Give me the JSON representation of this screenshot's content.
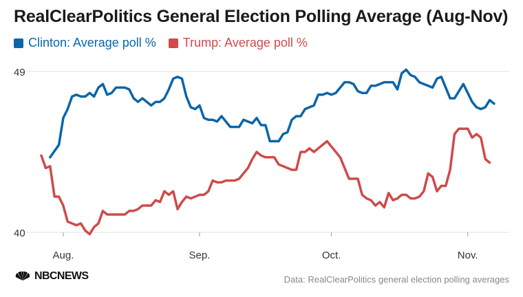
{
  "chart_data": {
    "type": "line",
    "title": "RealClearPolitics General Election Polling Average (Aug-Nov)",
    "xlabel": "",
    "ylabel": "",
    "ylim": [
      40,
      49
    ],
    "xlim": [
      "2016-07-27",
      "2016-11-07"
    ],
    "y_ticks": [
      {
        "value": 40,
        "label": "40"
      },
      {
        "value": 49,
        "label": "49"
      }
    ],
    "x_ticks": [
      {
        "date": "2016-08-01",
        "label": "Aug."
      },
      {
        "date": "2016-09-01",
        "label": "Sep."
      },
      {
        "date": "2016-10-01",
        "label": "Oct."
      },
      {
        "date": "2016-11-01",
        "label": "Nov."
      }
    ],
    "grid": "horizontal",
    "legend_position": "top-left",
    "series": [
      {
        "name": "Clinton: Average poll %",
        "color": "#0b65a8",
        "points": [
          [
            "2016-07-29",
            44.2
          ],
          [
            "2016-07-31",
            44.9
          ],
          [
            "2016-08-01",
            46.4
          ],
          [
            "2016-08-02",
            46.9
          ],
          [
            "2016-08-03",
            47.6
          ],
          [
            "2016-08-04",
            47.7
          ],
          [
            "2016-08-05",
            47.6
          ],
          [
            "2016-08-06",
            47.6
          ],
          [
            "2016-08-07",
            47.8
          ],
          [
            "2016-08-08",
            47.6
          ],
          [
            "2016-08-09",
            48.1
          ],
          [
            "2016-08-10",
            48.3
          ],
          [
            "2016-08-11",
            47.7
          ],
          [
            "2016-08-12",
            47.8
          ],
          [
            "2016-08-13",
            48.1
          ],
          [
            "2016-08-14",
            48.1
          ],
          [
            "2016-08-15",
            48.1
          ],
          [
            "2016-08-16",
            48.0
          ],
          [
            "2016-08-17",
            47.5
          ],
          [
            "2016-08-18",
            47.3
          ],
          [
            "2016-08-19",
            47.5
          ],
          [
            "2016-08-20",
            47.3
          ],
          [
            "2016-08-21",
            47.1
          ],
          [
            "2016-08-22",
            47.3
          ],
          [
            "2016-08-23",
            47.3
          ],
          [
            "2016-08-24",
            47.5
          ],
          [
            "2016-08-25",
            48.0
          ],
          [
            "2016-08-26",
            48.6
          ],
          [
            "2016-08-27",
            48.7
          ],
          [
            "2016-08-28",
            48.6
          ],
          [
            "2016-08-29",
            47.6
          ],
          [
            "2016-08-30",
            47.0
          ],
          [
            "2016-08-31",
            46.9
          ],
          [
            "2016-09-01",
            47.1
          ],
          [
            "2016-09-02",
            46.4
          ],
          [
            "2016-09-03",
            46.3
          ],
          [
            "2016-09-04",
            46.3
          ],
          [
            "2016-09-05",
            46.2
          ],
          [
            "2016-09-06",
            46.5
          ],
          [
            "2016-09-07",
            46.2
          ],
          [
            "2016-09-08",
            45.9
          ],
          [
            "2016-09-09",
            45.9
          ],
          [
            "2016-09-10",
            45.9
          ],
          [
            "2016-09-11",
            46.3
          ],
          [
            "2016-09-12",
            46.2
          ],
          [
            "2016-09-13",
            46.1
          ],
          [
            "2016-09-14",
            46.4
          ],
          [
            "2016-09-15",
            46.0
          ],
          [
            "2016-09-16",
            46.0
          ],
          [
            "2016-09-17",
            45.1
          ],
          [
            "2016-09-19",
            45.1
          ],
          [
            "2016-09-20",
            45.5
          ],
          [
            "2016-09-21",
            45.6
          ],
          [
            "2016-09-22",
            46.3
          ],
          [
            "2016-09-23",
            46.5
          ],
          [
            "2016-09-24",
            46.5
          ],
          [
            "2016-09-25",
            46.9
          ],
          [
            "2016-09-26",
            47.0
          ],
          [
            "2016-09-27",
            47.1
          ],
          [
            "2016-09-28",
            47.7
          ],
          [
            "2016-09-29",
            47.7
          ],
          [
            "2016-09-30",
            47.8
          ],
          [
            "2016-10-01",
            47.7
          ],
          [
            "2016-10-02",
            47.8
          ],
          [
            "2016-10-03",
            48.1
          ],
          [
            "2016-10-04",
            48.4
          ],
          [
            "2016-10-05",
            48.4
          ],
          [
            "2016-10-06",
            48.3
          ],
          [
            "2016-10-07",
            47.9
          ],
          [
            "2016-10-08",
            47.8
          ],
          [
            "2016-10-09",
            47.8
          ],
          [
            "2016-10-10",
            48.2
          ],
          [
            "2016-10-11",
            48.2
          ],
          [
            "2016-10-12",
            48.3
          ],
          [
            "2016-10-13",
            48.4
          ],
          [
            "2016-10-14",
            48.4
          ],
          [
            "2016-10-15",
            48.4
          ],
          [
            "2016-10-16",
            48.0
          ],
          [
            "2016-10-17",
            48.9
          ],
          [
            "2016-10-18",
            49.1
          ],
          [
            "2016-10-19",
            48.8
          ],
          [
            "2016-10-20",
            48.7
          ],
          [
            "2016-10-21",
            48.4
          ],
          [
            "2016-10-22",
            48.3
          ],
          [
            "2016-10-23",
            48.2
          ],
          [
            "2016-10-24",
            48.1
          ],
          [
            "2016-10-25",
            48.6
          ],
          [
            "2016-10-26",
            48.7
          ],
          [
            "2016-10-27",
            48.1
          ],
          [
            "2016-10-28",
            47.5
          ],
          [
            "2016-10-29",
            47.5
          ],
          [
            "2016-10-30",
            47.9
          ],
          [
            "2016-10-31",
            48.3
          ],
          [
            "2016-11-01",
            47.8
          ],
          [
            "2016-11-02",
            47.3
          ],
          [
            "2016-11-03",
            47.0
          ],
          [
            "2016-11-04",
            46.9
          ],
          [
            "2016-11-05",
            47.0
          ],
          [
            "2016-11-06",
            47.4
          ],
          [
            "2016-11-07",
            47.2
          ]
        ]
      },
      {
        "name": "Trump: Average poll %",
        "color": "#cf4a4a",
        "points": [
          [
            "2016-07-27",
            44.3
          ],
          [
            "2016-07-28",
            43.6
          ],
          [
            "2016-07-29",
            43.7
          ],
          [
            "2016-07-30",
            42.0
          ],
          [
            "2016-07-31",
            42.0
          ],
          [
            "2016-08-01",
            41.5
          ],
          [
            "2016-08-02",
            40.6
          ],
          [
            "2016-08-03",
            40.5
          ],
          [
            "2016-08-04",
            40.4
          ],
          [
            "2016-08-05",
            40.5
          ],
          [
            "2016-08-06",
            40.1
          ],
          [
            "2016-08-07",
            39.9
          ],
          [
            "2016-08-08",
            40.3
          ],
          [
            "2016-08-09",
            40.5
          ],
          [
            "2016-08-10",
            41.2
          ],
          [
            "2016-08-11",
            41.0
          ],
          [
            "2016-08-12",
            41.0
          ],
          [
            "2016-08-13",
            41.0
          ],
          [
            "2016-08-14",
            41.0
          ],
          [
            "2016-08-15",
            41.0
          ],
          [
            "2016-08-16",
            41.2
          ],
          [
            "2016-08-17",
            41.2
          ],
          [
            "2016-08-18",
            41.3
          ],
          [
            "2016-08-19",
            41.5
          ],
          [
            "2016-08-20",
            41.5
          ],
          [
            "2016-08-21",
            41.5
          ],
          [
            "2016-08-22",
            41.8
          ],
          [
            "2016-08-23",
            41.7
          ],
          [
            "2016-08-24",
            42.3
          ],
          [
            "2016-08-25",
            42.1
          ],
          [
            "2016-08-26",
            42.3
          ],
          [
            "2016-08-27",
            41.3
          ],
          [
            "2016-08-28",
            41.7
          ],
          [
            "2016-08-29",
            42.0
          ],
          [
            "2016-08-30",
            41.9
          ],
          [
            "2016-08-31",
            42.0
          ],
          [
            "2016-09-01",
            42.1
          ],
          [
            "2016-09-02",
            42.1
          ],
          [
            "2016-09-03",
            42.3
          ],
          [
            "2016-09-04",
            42.9
          ],
          [
            "2016-09-05",
            42.8
          ],
          [
            "2016-09-06",
            42.8
          ],
          [
            "2016-09-07",
            42.9
          ],
          [
            "2016-09-08",
            42.9
          ],
          [
            "2016-09-09",
            42.9
          ],
          [
            "2016-09-10",
            43.0
          ],
          [
            "2016-09-11",
            43.3
          ],
          [
            "2016-09-12",
            43.6
          ],
          [
            "2016-09-13",
            44.1
          ],
          [
            "2016-09-14",
            44.5
          ],
          [
            "2016-09-15",
            44.3
          ],
          [
            "2016-09-16",
            44.2
          ],
          [
            "2016-09-17",
            44.2
          ],
          [
            "2016-09-18",
            44.2
          ],
          [
            "2016-09-19",
            43.8
          ],
          [
            "2016-09-20",
            43.7
          ],
          [
            "2016-09-21",
            43.6
          ],
          [
            "2016-09-22",
            43.5
          ],
          [
            "2016-09-23",
            43.5
          ],
          [
            "2016-09-24",
            44.5
          ],
          [
            "2016-09-25",
            44.5
          ],
          [
            "2016-09-26",
            44.7
          ],
          [
            "2016-09-27",
            44.5
          ],
          [
            "2016-09-28",
            44.7
          ],
          [
            "2016-09-29",
            44.9
          ],
          [
            "2016-09-30",
            45.1
          ],
          [
            "2016-10-01",
            44.8
          ],
          [
            "2016-10-02",
            44.5
          ],
          [
            "2016-10-03",
            44.2
          ],
          [
            "2016-10-04",
            43.6
          ],
          [
            "2016-10-05",
            43.0
          ],
          [
            "2016-10-06",
            43.0
          ],
          [
            "2016-10-07",
            43.0
          ],
          [
            "2016-10-08",
            42.1
          ],
          [
            "2016-10-09",
            41.9
          ],
          [
            "2016-10-10",
            41.8
          ],
          [
            "2016-10-11",
            41.5
          ],
          [
            "2016-10-12",
            41.7
          ],
          [
            "2016-10-13",
            41.4
          ],
          [
            "2016-10-14",
            42.2
          ],
          [
            "2016-10-15",
            41.8
          ],
          [
            "2016-10-16",
            41.9
          ],
          [
            "2016-10-17",
            42.1
          ],
          [
            "2016-10-18",
            42.1
          ],
          [
            "2016-10-19",
            41.9
          ],
          [
            "2016-10-20",
            41.9
          ],
          [
            "2016-10-21",
            42.0
          ],
          [
            "2016-10-22",
            42.3
          ],
          [
            "2016-10-23",
            43.3
          ],
          [
            "2016-10-24",
            43.1
          ],
          [
            "2016-10-25",
            42.3
          ],
          [
            "2016-10-26",
            42.6
          ],
          [
            "2016-10-27",
            42.6
          ],
          [
            "2016-10-28",
            43.5
          ],
          [
            "2016-10-29",
            45.5
          ],
          [
            "2016-10-30",
            45.8
          ],
          [
            "2016-10-31",
            45.8
          ],
          [
            "2016-11-01",
            45.8
          ],
          [
            "2016-11-02",
            45.3
          ],
          [
            "2016-11-03",
            45.5
          ],
          [
            "2016-11-04",
            45.3
          ],
          [
            "2016-11-05",
            44.1
          ],
          [
            "2016-11-06",
            43.9
          ]
        ]
      }
    ]
  },
  "footer": {
    "brand": "NBCNEWS",
    "source": "Data: RealClearPolitics general election polling averages"
  }
}
